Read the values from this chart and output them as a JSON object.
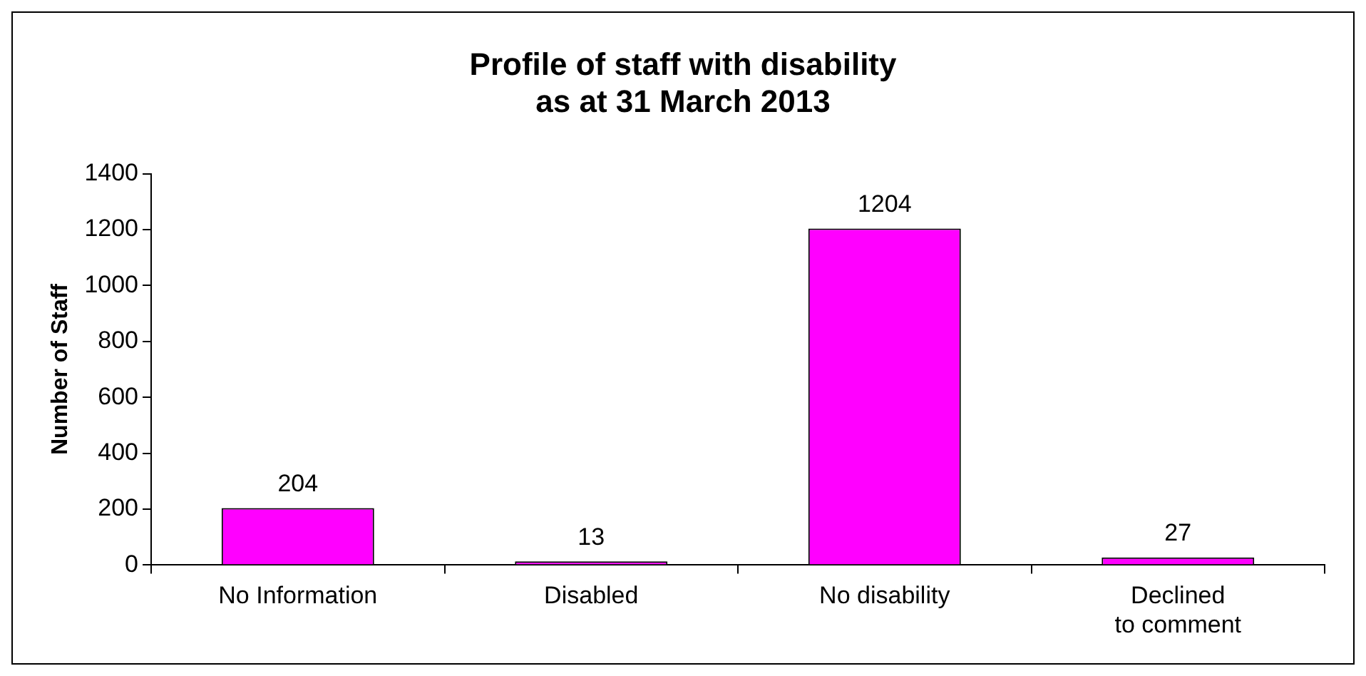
{
  "chart_data": {
    "type": "bar",
    "title": "Profile of staff with disability\nas at 31 March 2013",
    "ylabel": "Number of Staff",
    "categories": [
      "No Information",
      "Disabled",
      "No disability",
      "Declined to comment"
    ],
    "values": [
      204,
      13,
      1204,
      27
    ],
    "color": "#ff00ff",
    "ylim": [
      0,
      1400
    ],
    "yticks": [
      0,
      200,
      400,
      600,
      800,
      1000,
      1200,
      1400
    ],
    "grid": false,
    "legend": false,
    "data_labels": true
  }
}
